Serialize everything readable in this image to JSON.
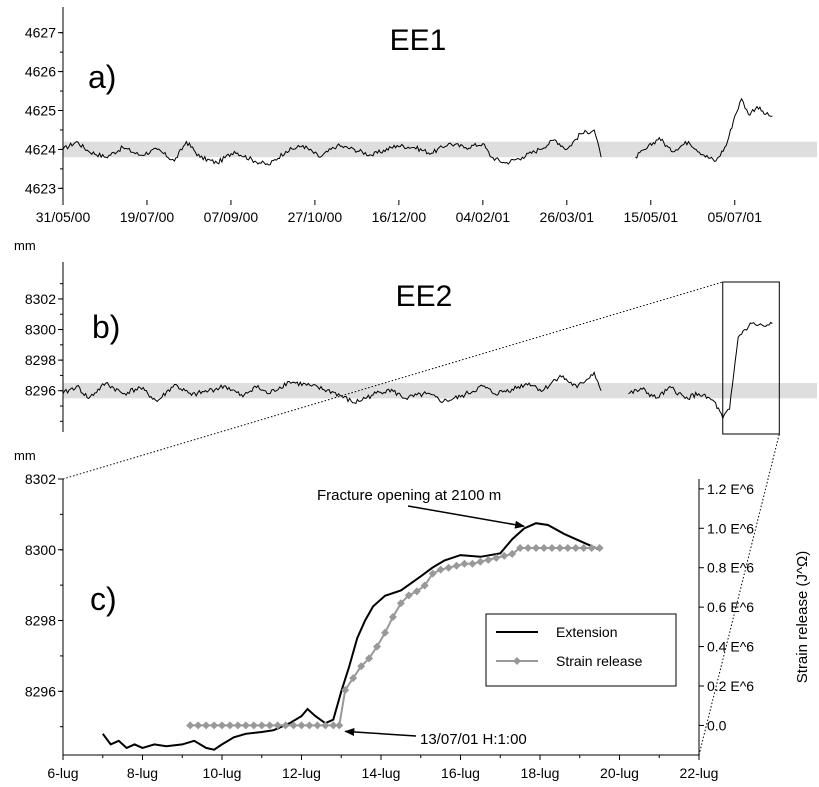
{
  "chart_data": [
    {
      "type": "line",
      "panel_label": "a)",
      "title": "EE1",
      "ylabel": "mm",
      "ylim": [
        4622.7,
        4627.3
      ],
      "yticks": [
        4623,
        4624,
        4625,
        4626,
        4627
      ],
      "x_tick_labels": [
        "31/05/00",
        "19/07/00",
        "07/09/00",
        "27/10/00",
        "16/12/00",
        "04/02/01",
        "26/03/01",
        "15/05/01",
        "05/07/01"
      ],
      "x_range_days": [
        0,
        440
      ],
      "band": [
        4623.8,
        4624.2
      ],
      "series": [
        {
          "points": [
            [
              0,
              4624.0
            ],
            [
              8,
              4624.2
            ],
            [
              15,
              4623.95
            ],
            [
              25,
              4623.8
            ],
            [
              35,
              4624.05
            ],
            [
              45,
              4623.85
            ],
            [
              55,
              4624.0
            ],
            [
              65,
              4623.7
            ],
            [
              72,
              4624.2
            ],
            [
              80,
              4623.8
            ],
            [
              90,
              4623.65
            ],
            [
              100,
              4623.95
            ],
            [
              112,
              4623.7
            ],
            [
              120,
              4623.6
            ],
            [
              130,
              4623.95
            ],
            [
              140,
              4624.1
            ],
            [
              150,
              4623.8
            ],
            [
              160,
              4624.1
            ],
            [
              170,
              4624.0
            ],
            [
              180,
              4623.85
            ],
            [
              195,
              4624.1
            ],
            [
              205,
              4624.05
            ],
            [
              215,
              4623.9
            ],
            [
              225,
              4624.15
            ],
            [
              235,
              4624.05
            ],
            [
              245,
              4624.15
            ],
            [
              250,
              4623.8
            ],
            [
              258,
              4623.65
            ],
            [
              268,
              4623.8
            ],
            [
              278,
              4624.0
            ],
            [
              287,
              4624.25
            ],
            [
              294,
              4624.0
            ],
            [
              302,
              4624.4
            ],
            [
              310,
              4624.5
            ],
            [
              314,
              4623.8
            ],
            [
              334,
              null
            ],
            [
              334,
              4623.8
            ],
            [
              340,
              4624.0
            ],
            [
              348,
              4624.3
            ],
            [
              355,
              4623.95
            ],
            [
              365,
              4624.2
            ],
            [
              374,
              4623.85
            ],
            [
              381,
              4623.7
            ],
            [
              387,
              4624.1
            ],
            [
              392,
              4624.85
            ],
            [
              396,
              4625.3
            ],
            [
              400,
              4624.9
            ],
            [
              405,
              4625.1
            ],
            [
              410,
              4624.9
            ],
            [
              414,
              4624.85
            ]
          ]
        }
      ]
    },
    {
      "type": "line",
      "panel_label": "b)",
      "title": "EE2",
      "ylabel": "mm",
      "ylim": [
        8293.3,
        8303.5
      ],
      "yticks": [
        8296,
        8298,
        8300,
        8302
      ],
      "x_range_days": [
        0,
        440
      ],
      "band": [
        8295.5,
        8296.5
      ],
      "series": [
        {
          "points": [
            [
              0,
              8295.8
            ],
            [
              8,
              8296.3
            ],
            [
              15,
              8295.5
            ],
            [
              25,
              8296.5
            ],
            [
              35,
              8295.8
            ],
            [
              45,
              8296.2
            ],
            [
              55,
              8295.3
            ],
            [
              65,
              8296.4
            ],
            [
              75,
              8295.7
            ],
            [
              85,
              8296.0
            ],
            [
              95,
              8296.3
            ],
            [
              105,
              8295.6
            ],
            [
              112,
              8296.3
            ],
            [
              120,
              8295.8
            ],
            [
              132,
              8296.6
            ],
            [
              145,
              8296.3
            ],
            [
              158,
              8295.9
            ],
            [
              170,
              8295.2
            ],
            [
              180,
              8295.7
            ],
            [
              190,
              8296.1
            ],
            [
              200,
              8295.5
            ],
            [
              212,
              8295.8
            ],
            [
              222,
              8295.3
            ],
            [
              232,
              8295.6
            ],
            [
              245,
              8296.3
            ],
            [
              252,
              8295.8
            ],
            [
              262,
              8296.1
            ],
            [
              272,
              8296.5
            ],
            [
              280,
              8296.0
            ],
            [
              290,
              8297.0
            ],
            [
              300,
              8296.2
            ],
            [
              310,
              8297.2
            ],
            [
              314,
              8296.0
            ],
            [
              330,
              null
            ],
            [
              330,
              8295.8
            ],
            [
              338,
              8296.1
            ],
            [
              346,
              8295.5
            ],
            [
              355,
              8296.2
            ],
            [
              363,
              8295.5
            ],
            [
              371,
              8295.8
            ],
            [
              380,
              8295.3
            ],
            [
              385,
              8294.2
            ],
            [
              389,
              8294.8
            ],
            [
              394,
              8299.5
            ],
            [
              398,
              8300.0
            ],
            [
              402,
              8300.4
            ],
            [
              406,
              8300.3
            ],
            [
              410,
              8300.2
            ],
            [
              414,
              8300.4
            ]
          ]
        }
      ],
      "zoom_box_days": [
        385,
        418
      ]
    },
    {
      "type": "line",
      "panel_label": "c)",
      "ylabel": "mm",
      "y2label": "Strain release (J^Ω)",
      "ylim": [
        8294.2,
        8302.0
      ],
      "yticks": [
        8296,
        8298,
        8300,
        8302
      ],
      "y2lim": [
        -0.15,
        1.25
      ],
      "y2ticks": [
        0.0,
        0.2,
        0.4,
        0.6,
        0.8,
        1.0,
        1.2
      ],
      "y2_tick_labels": [
        "0.0",
        "0.2 E^6",
        "0.4 E^6",
        "0.6 E^6",
        "0.8 E^6",
        "1.0 E^6",
        "1.2 E^6"
      ],
      "xlim": [
        6,
        22
      ],
      "xticks": [
        6,
        8,
        10,
        12,
        14,
        16,
        18,
        20,
        22
      ],
      "x_tick_labels": [
        "6-lug",
        "8-lug",
        "10-lug",
        "12-lug",
        "14-lug",
        "16-lug",
        "18-lug",
        "20-lug",
        "22-lug"
      ],
      "legend": {
        "placement": "right",
        "entries": [
          "Extension",
          "Strain release"
        ]
      },
      "annotations": [
        {
          "text": "Fracture opening at 2100 m",
          "x": 17.8,
          "y": 8300.75,
          "axis": "left"
        },
        {
          "text": "13/07/01 H:1:00",
          "x": 12.95,
          "y": 0.0,
          "axis": "right"
        }
      ],
      "series": [
        {
          "name": "Extension",
          "axis": "left",
          "color": "#000000",
          "points": [
            [
              7.0,
              8294.8
            ],
            [
              7.2,
              8294.5
            ],
            [
              7.4,
              8294.6
            ],
            [
              7.6,
              8294.4
            ],
            [
              7.8,
              8294.5
            ],
            [
              8.0,
              8294.4
            ],
            [
              8.3,
              8294.5
            ],
            [
              8.6,
              8294.45
            ],
            [
              9.0,
              8294.5
            ],
            [
              9.3,
              8294.6
            ],
            [
              9.6,
              8294.4
            ],
            [
              9.8,
              8294.35
            ],
            [
              10.0,
              8294.5
            ],
            [
              10.3,
              8294.7
            ],
            [
              10.6,
              8294.8
            ],
            [
              11.0,
              8294.85
            ],
            [
              11.3,
              8294.9
            ],
            [
              11.7,
              8295.1
            ],
            [
              12.0,
              8295.3
            ],
            [
              12.15,
              8295.5
            ],
            [
              12.35,
              8295.3
            ],
            [
              12.6,
              8295.1
            ],
            [
              12.8,
              8295.2
            ],
            [
              13.0,
              8296.0
            ],
            [
              13.2,
              8296.7
            ],
            [
              13.4,
              8297.5
            ],
            [
              13.6,
              8298.0
            ],
            [
              13.8,
              8298.4
            ],
            [
              14.1,
              8298.7
            ],
            [
              14.5,
              8298.85
            ],
            [
              15.0,
              8299.25
            ],
            [
              15.3,
              8299.5
            ],
            [
              15.6,
              8299.7
            ],
            [
              16.0,
              8299.85
            ],
            [
              16.5,
              8299.8
            ],
            [
              17.0,
              8299.9
            ],
            [
              17.3,
              8300.3
            ],
            [
              17.6,
              8300.6
            ],
            [
              17.9,
              8300.75
            ],
            [
              18.2,
              8300.7
            ],
            [
              18.6,
              8300.45
            ],
            [
              19.0,
              8300.25
            ],
            [
              19.3,
              8300.1
            ],
            [
              19.5,
              8300.0
            ]
          ]
        },
        {
          "name": "Strain release",
          "axis": "right",
          "color": "#999999",
          "points": [
            [
              9.2,
              0.0
            ],
            [
              9.4,
              0.0
            ],
            [
              9.6,
              0.0
            ],
            [
              9.8,
              0.0
            ],
            [
              10.0,
              0.0
            ],
            [
              10.2,
              0.0
            ],
            [
              10.4,
              0.0
            ],
            [
              10.6,
              0.0
            ],
            [
              10.8,
              0.0
            ],
            [
              11.0,
              0.0
            ],
            [
              11.2,
              0.0
            ],
            [
              11.4,
              0.0
            ],
            [
              11.6,
              0.0
            ],
            [
              11.8,
              0.0
            ],
            [
              12.0,
              0.0
            ],
            [
              12.2,
              0.0
            ],
            [
              12.4,
              0.0
            ],
            [
              12.6,
              0.0
            ],
            [
              12.8,
              0.0
            ],
            [
              12.95,
              0.0
            ],
            [
              13.1,
              0.18
            ],
            [
              13.3,
              0.24
            ],
            [
              13.5,
              0.3
            ],
            [
              13.7,
              0.34
            ],
            [
              13.9,
              0.4
            ],
            [
              14.1,
              0.47
            ],
            [
              14.3,
              0.55
            ],
            [
              14.5,
              0.62
            ],
            [
              14.7,
              0.66
            ],
            [
              14.9,
              0.68
            ],
            [
              15.1,
              0.71
            ],
            [
              15.3,
              0.77
            ],
            [
              15.5,
              0.79
            ],
            [
              15.7,
              0.8
            ],
            [
              15.9,
              0.81
            ],
            [
              16.1,
              0.82
            ],
            [
              16.3,
              0.82
            ],
            [
              16.5,
              0.83
            ],
            [
              16.7,
              0.84
            ],
            [
              16.9,
              0.85
            ],
            [
              17.1,
              0.86
            ],
            [
              17.3,
              0.87
            ],
            [
              17.5,
              0.9
            ],
            [
              17.7,
              0.9
            ],
            [
              17.9,
              0.9
            ],
            [
              18.1,
              0.9
            ],
            [
              18.3,
              0.9
            ],
            [
              18.5,
              0.9
            ],
            [
              18.7,
              0.9
            ],
            [
              18.9,
              0.9
            ],
            [
              19.1,
              0.9
            ],
            [
              19.3,
              0.9
            ],
            [
              19.5,
              0.9
            ]
          ]
        }
      ]
    }
  ]
}
